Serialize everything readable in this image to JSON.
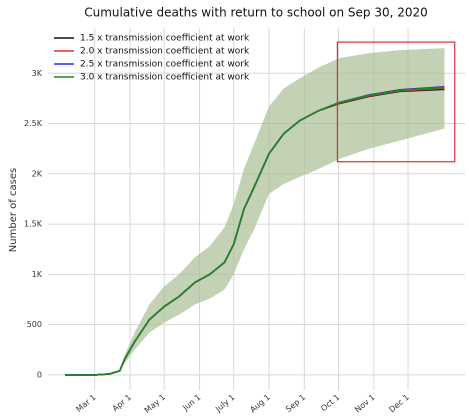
{
  "chart_data": {
    "type": "line",
    "title": "Cumulative deaths with return to school on Sep 30, 2020",
    "y_label": "Number of cases",
    "x": [
      34,
      60,
      73,
      82,
      86,
      95,
      108,
      121,
      134,
      148,
      161,
      174,
      182,
      191,
      200,
      213,
      226,
      240,
      257,
      275,
      301,
      328,
      367
    ],
    "series": [
      {
        "name": "1.5 x transmission coefficient at work",
        "color": "#111111",
        "values": [
          0,
          0,
          10,
          40,
          150,
          330,
          550,
          680,
          780,
          920,
          1000,
          1120,
          1300,
          1650,
          1870,
          2200,
          2400,
          2530,
          2630,
          2700,
          2770,
          2820,
          2840
        ]
      },
      {
        "name": "2.0 x transmission coefficient at work",
        "color": "#e03030",
        "values": [
          0,
          0,
          10,
          40,
          150,
          330,
          550,
          680,
          780,
          920,
          1000,
          1120,
          1300,
          1650,
          1870,
          2200,
          2400,
          2530,
          2630,
          2705,
          2775,
          2825,
          2850
        ]
      },
      {
        "name": "2.5 x transmission coefficient at work",
        "color": "#2a2ae0",
        "values": [
          0,
          0,
          10,
          40,
          150,
          330,
          550,
          680,
          780,
          920,
          1000,
          1120,
          1300,
          1650,
          1870,
          2200,
          2400,
          2530,
          2630,
          2710,
          2785,
          2835,
          2865
        ]
      },
      {
        "name": "3.0 x transmission coefficient at work",
        "color": "#1f8a1f",
        "values": [
          0,
          0,
          10,
          40,
          150,
          330,
          550,
          680,
          780,
          920,
          1000,
          1120,
          1300,
          1650,
          1870,
          2200,
          2400,
          2530,
          2630,
          2710,
          2780,
          2830,
          2860
        ]
      }
    ],
    "band": {
      "color": "#a9bf96",
      "upper": [
        0,
        0,
        12,
        50,
        190,
        420,
        700,
        880,
        1000,
        1170,
        1280,
        1470,
        1700,
        2050,
        2300,
        2670,
        2850,
        2950,
        3060,
        3150,
        3200,
        3230,
        3250
      ],
      "lower": [
        0,
        0,
        8,
        30,
        110,
        250,
        420,
        520,
        600,
        700,
        760,
        850,
        1000,
        1250,
        1450,
        1800,
        1900,
        1970,
        2050,
        2150,
        2250,
        2330,
        2450
      ]
    },
    "highlight": {
      "x": [
        273,
        376
      ],
      "y": [
        2120,
        3310
      ],
      "color": "#e03030"
    },
    "xlim": [
      19,
      385
    ],
    "xticks": [
      {
        "value": 60,
        "label": "Mar 1"
      },
      {
        "value": 91,
        "label": "Apr 1"
      },
      {
        "value": 121,
        "label": "May 1"
      },
      {
        "value": 152,
        "label": "Jun 1"
      },
      {
        "value": 182,
        "label": "July 1"
      },
      {
        "value": 213,
        "label": "Aug 1"
      },
      {
        "value": 244,
        "label": "Sep 1"
      },
      {
        "value": 274,
        "label": "Oct 1"
      },
      {
        "value": 305,
        "label": "Nov 1"
      },
      {
        "value": 335,
        "label": "Dec 1"
      }
    ],
    "ylim": [
      -150,
      3450
    ],
    "yticks": [
      0,
      500,
      {
        "value": 1000,
        "label": "1K"
      },
      {
        "value": 1500,
        "label": "1.5K"
      },
      {
        "value": 2000,
        "label": "2K"
      },
      {
        "value": 2500,
        "label": "2.5K"
      },
      {
        "value": 3000,
        "label": "3K"
      }
    ],
    "grid": true,
    "legend": "upper left"
  }
}
